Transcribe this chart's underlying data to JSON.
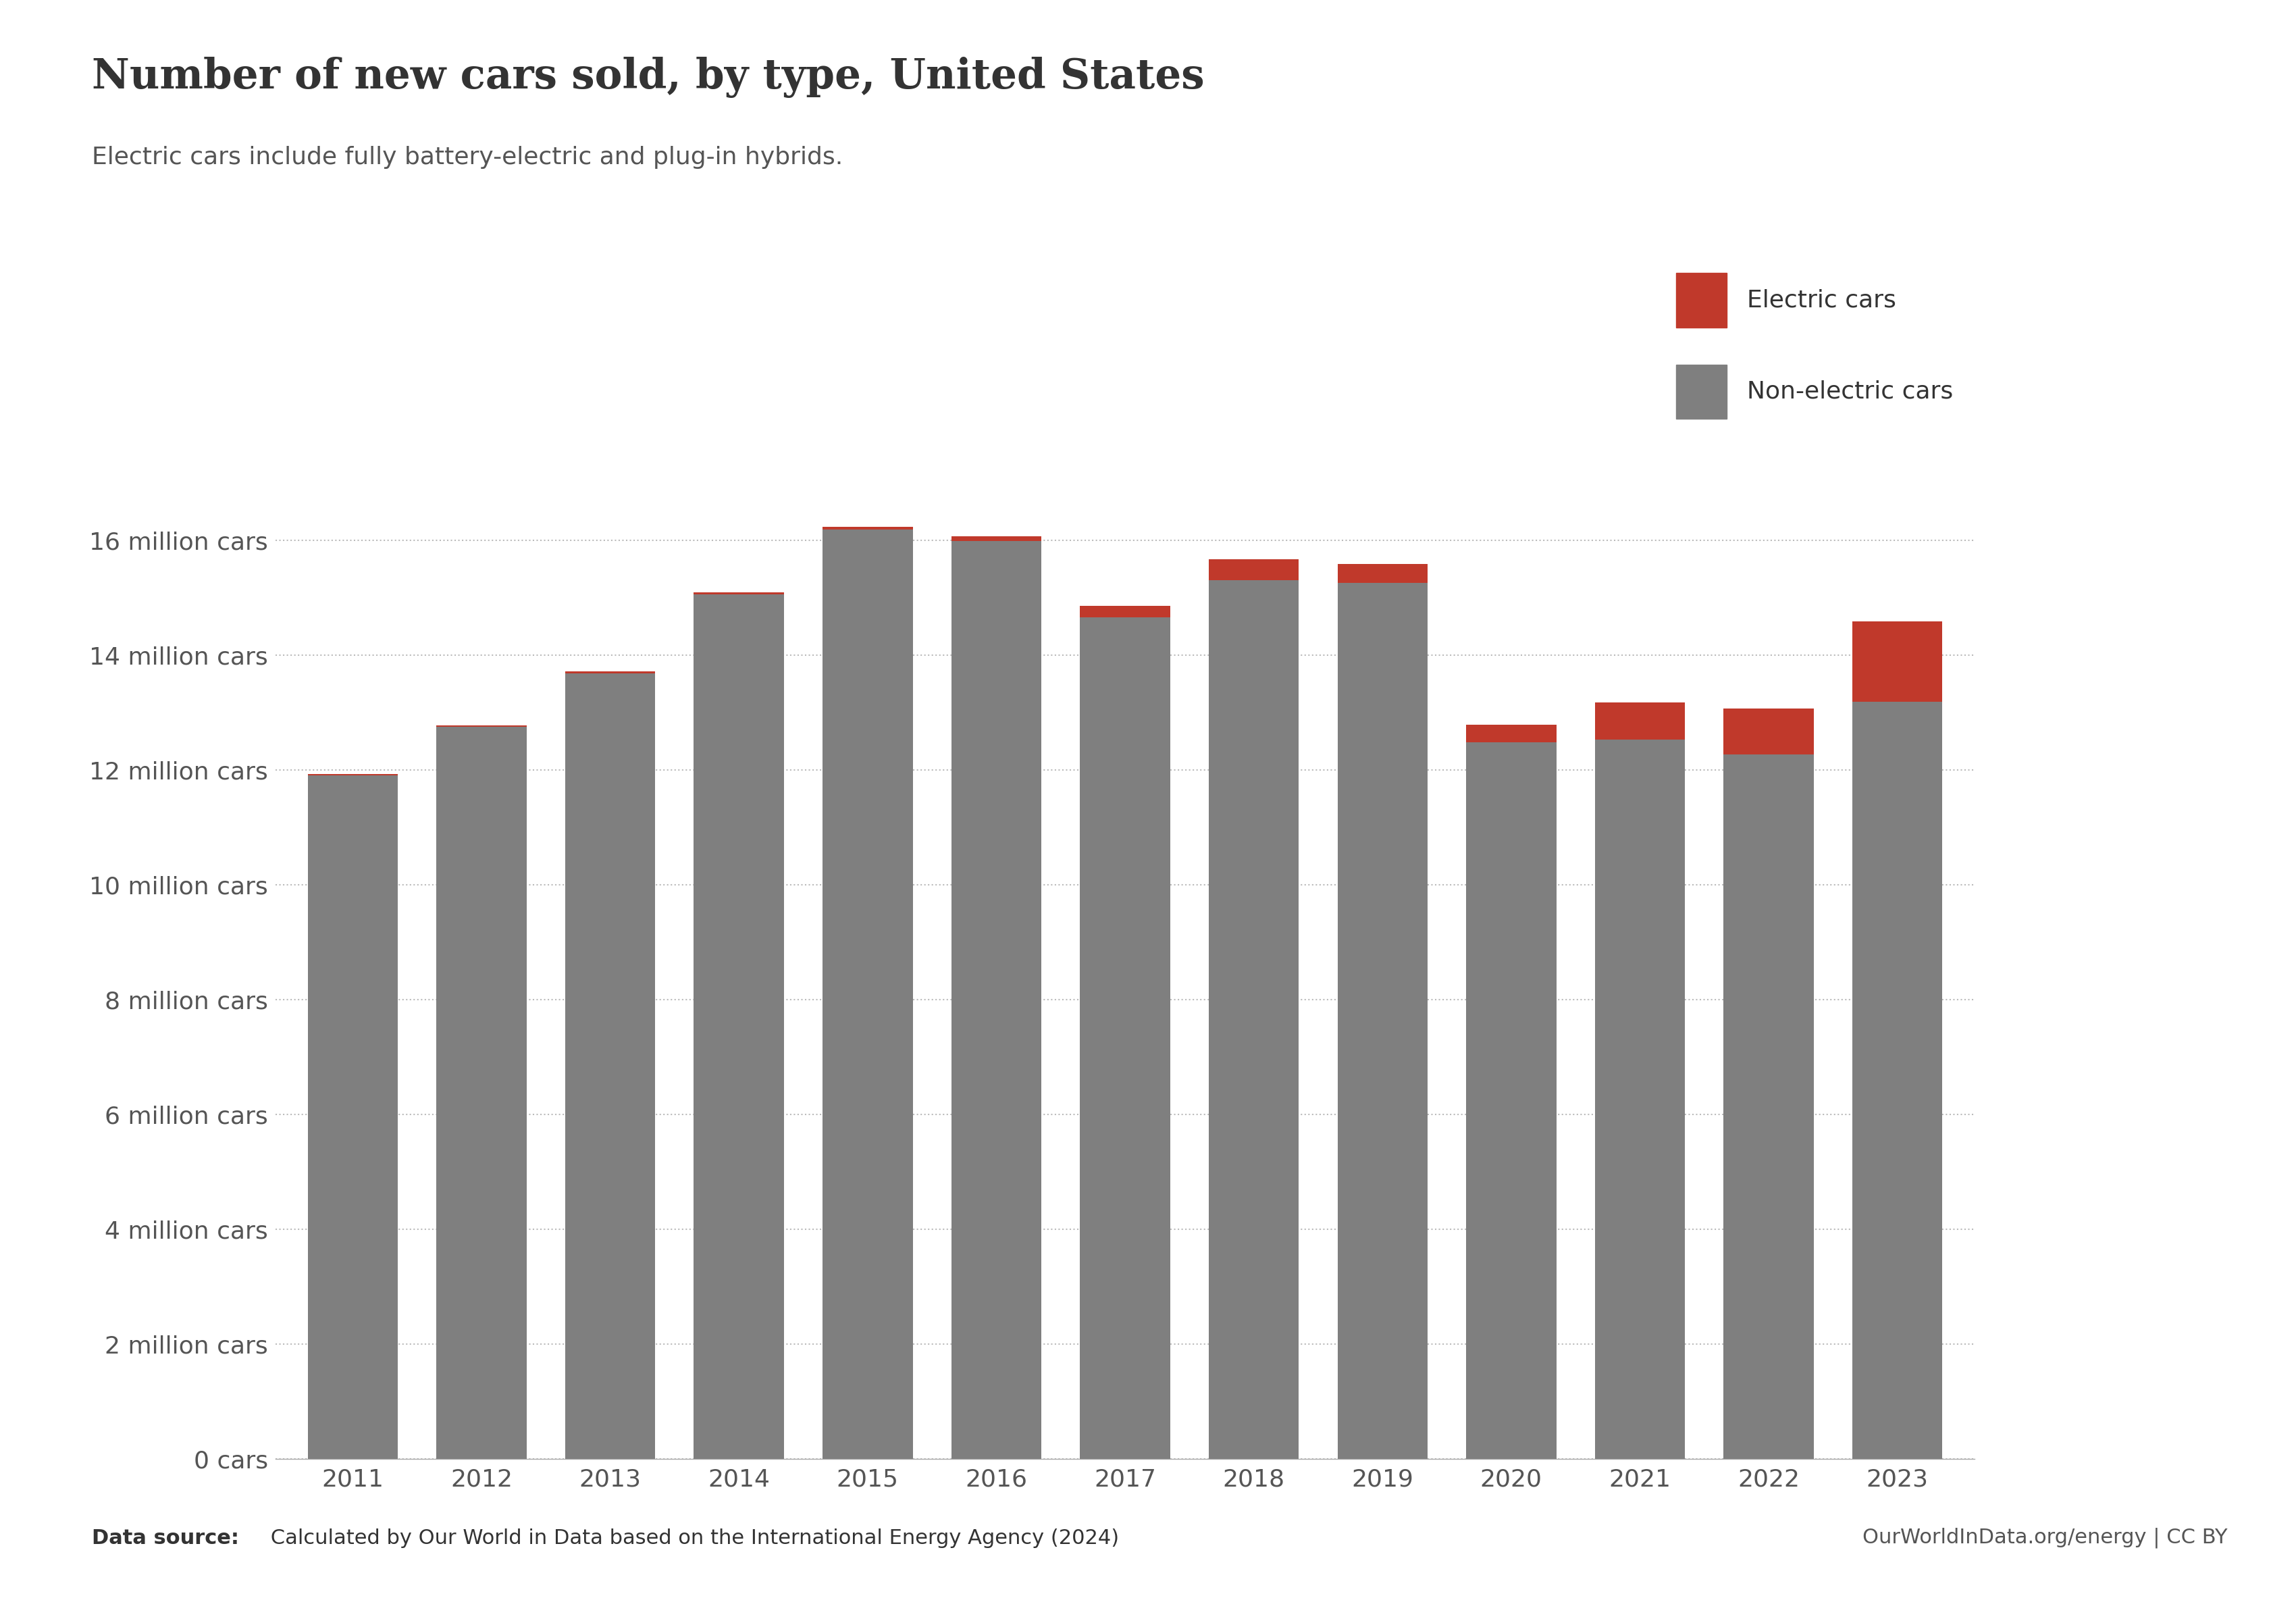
{
  "years": [
    2011,
    2012,
    2013,
    2014,
    2015,
    2016,
    2017,
    2018,
    2019,
    2020,
    2021,
    2022,
    2023
  ],
  "non_electric": [
    11.9,
    12.75,
    13.68,
    15.05,
    16.18,
    15.98,
    14.65,
    15.3,
    15.25,
    12.48,
    12.52,
    12.27,
    13.18
  ],
  "electric": [
    0.02,
    0.02,
    0.03,
    0.04,
    0.05,
    0.08,
    0.2,
    0.36,
    0.33,
    0.3,
    0.65,
    0.8,
    1.4
  ],
  "electric_color": "#c0392b",
  "non_electric_color": "#7f7f7f",
  "background_color": "#ffffff",
  "title": "Number of new cars sold, by type, United States",
  "subtitle": "Electric cars include fully battery-electric and plug-in hybrids.",
  "ylabel_ticks": [
    "0 cars",
    "2 million cars",
    "4 million cars",
    "6 million cars",
    "8 million cars",
    "10 million cars",
    "12 million cars",
    "14 million cars",
    "16 million cars"
  ],
  "ytick_vals": [
    0,
    2,
    4,
    6,
    8,
    10,
    12,
    14,
    16
  ],
  "ylim": [
    0,
    17.5
  ],
  "data_source_bold": "Data source:",
  "data_source_rest": " Calculated by Our World in Data based on the International Energy Agency (2024)",
  "data_source_right": "OurWorldInData.org/energy | CC BY",
  "legend_electric": "Electric cars",
  "legend_non_electric": "Non-electric cars",
  "owid_box_color": "#0d2a5e",
  "owid_bar_color": "#b22222",
  "title_fontsize": 44,
  "subtitle_fontsize": 26,
  "tick_fontsize": 26,
  "legend_fontsize": 26,
  "source_fontsize": 22
}
